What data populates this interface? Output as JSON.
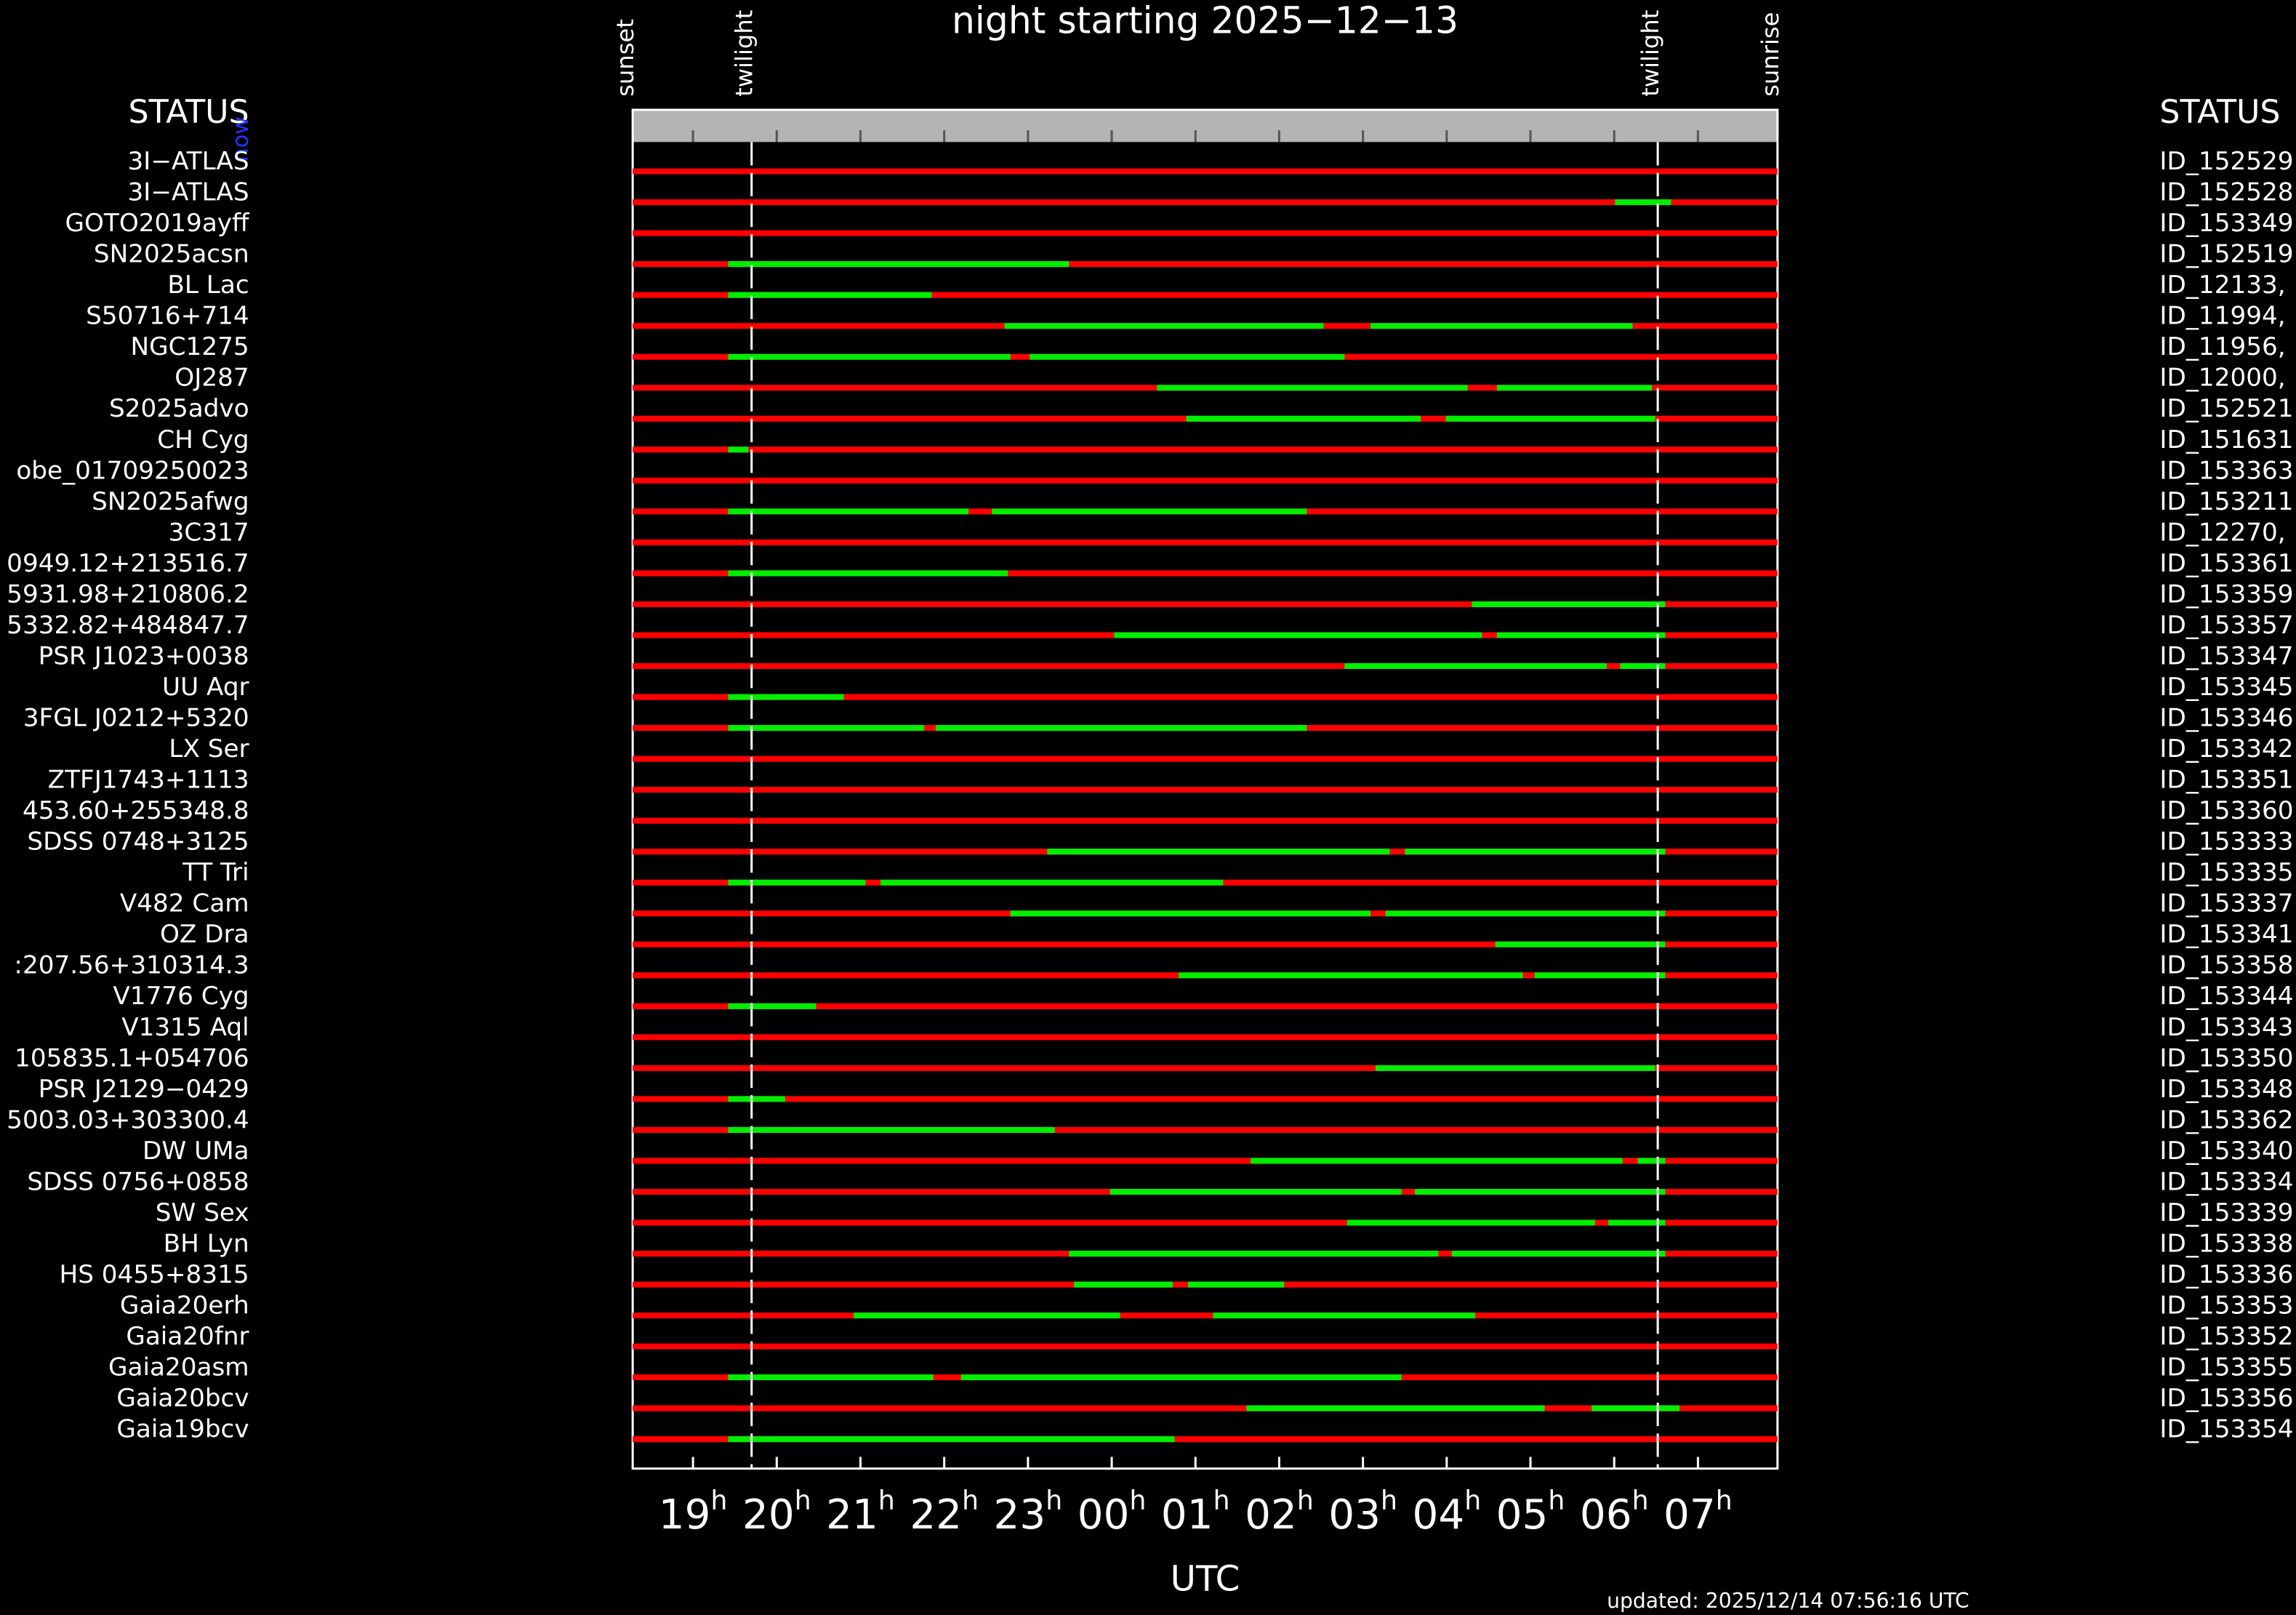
{
  "title": "night starting 2025−12−13",
  "status_left": "STATUS",
  "status_right": "STATUS",
  "now_label": "now",
  "x_label": "UTC",
  "updated": "updated: 2025/12/14 07:56:16 UTC",
  "hour_unit": "h",
  "xlim": [
    18.28,
    31.95
  ],
  "xticks": [
    {
      "value": 19,
      "label": "19"
    },
    {
      "value": 20,
      "label": "20"
    },
    {
      "value": 21,
      "label": "21"
    },
    {
      "value": 22,
      "label": "22"
    },
    {
      "value": 23,
      "label": "23"
    },
    {
      "value": 24,
      "label": "00"
    },
    {
      "value": 25,
      "label": "01"
    },
    {
      "value": 26,
      "label": "02"
    },
    {
      "value": 27,
      "label": "03"
    },
    {
      "value": 28,
      "label": "04"
    },
    {
      "value": 29,
      "label": "05"
    },
    {
      "value": 30,
      "label": "06"
    },
    {
      "value": 31,
      "label": "07"
    }
  ],
  "events": [
    {
      "label": "sunset",
      "value": 18.28
    },
    {
      "label": "twilight",
      "value": 19.7
    },
    {
      "label": "twilight",
      "value": 30.52
    },
    {
      "label": "sunrise",
      "value": 31.95
    }
  ],
  "rows": [
    {
      "name": "3I−ATLAS",
      "id": "ID_152529",
      "green": []
    },
    {
      "name": "3I−ATLAS",
      "id": "ID_152528",
      "green": [
        [
          30.01,
          30.68
        ]
      ]
    },
    {
      "name": "GOTO2019ayff",
      "id": "ID_153349",
      "green": []
    },
    {
      "name": "SN2025acsn",
      "id": "ID_152519",
      "green": [
        [
          19.42,
          23.49
        ]
      ]
    },
    {
      "name": "BL Lac",
      "id": "ID_12133,",
      "green": [
        [
          19.42,
          21.85
        ]
      ]
    },
    {
      "name": "S50716+714",
      "id": "ID_11994,",
      "green": [
        [
          22.72,
          26.53
        ],
        [
          27.09,
          30.22
        ]
      ]
    },
    {
      "name": "NGC1275",
      "id": "ID_11956,",
      "green": [
        [
          19.42,
          22.79
        ],
        [
          23.02,
          26.78
        ]
      ]
    },
    {
      "name": "OJ287",
      "id": "ID_12000,",
      "green": [
        [
          24.54,
          28.25
        ],
        [
          28.6,
          30.45
        ]
      ]
    },
    {
      "name": "S2025advo",
      "id": "ID_152521",
      "green": [
        [
          24.89,
          27.69
        ],
        [
          27.99,
          30.49
        ]
      ]
    },
    {
      "name": "CH Cyg",
      "id": "ID_151631",
      "green": [
        [
          19.42,
          19.66
        ]
      ]
    },
    {
      "name": "obe_01709250023",
      "id": "ID_153363",
      "green": []
    },
    {
      "name": "SN2025afwg",
      "id": "ID_153211",
      "green": [
        [
          19.42,
          22.29
        ],
        [
          22.57,
          26.33
        ]
      ]
    },
    {
      "name": "3C317",
      "id": "ID_12270,",
      "green": []
    },
    {
      "name": "0949.12+213516.7",
      "id": "ID_153361",
      "green": [
        [
          19.42,
          22.76
        ]
      ]
    },
    {
      "name": "5931.98+210806.2",
      "id": "ID_153359",
      "green": [
        [
          28.3,
          30.61
        ]
      ]
    },
    {
      "name": "5332.82+484847.7",
      "id": "ID_153357",
      "green": [
        [
          24.03,
          28.42
        ],
        [
          28.6,
          30.61
        ]
      ]
    },
    {
      "name": "PSR J1023+0038",
      "id": "ID_153347",
      "green": [
        [
          26.78,
          29.91
        ],
        [
          30.07,
          30.61
        ]
      ]
    },
    {
      "name": "UU Aqr",
      "id": "ID_153345",
      "green": [
        [
          19.42,
          20.8
        ]
      ]
    },
    {
      "name": "3FGL J0212+5320",
      "id": "ID_153346",
      "green": [
        [
          19.42,
          21.76
        ],
        [
          21.9,
          26.33
        ]
      ]
    },
    {
      "name": "LX Ser",
      "id": "ID_153342",
      "green": []
    },
    {
      "name": "ZTFJ1743+1113",
      "id": "ID_153351",
      "green": []
    },
    {
      "name": "453.60+255348.8",
      "id": "ID_153360",
      "green": []
    },
    {
      "name": "SDSS 0748+3125",
      "id": "ID_153333",
      "green": [
        [
          23.23,
          27.32
        ],
        [
          27.5,
          30.61
        ]
      ]
    },
    {
      "name": "TT Tri",
      "id": "ID_153335",
      "green": [
        [
          19.42,
          21.06
        ],
        [
          21.24,
          25.33
        ]
      ]
    },
    {
      "name": "V482 Cam",
      "id": "ID_153337",
      "green": [
        [
          22.79,
          27.09
        ],
        [
          27.27,
          30.61
        ]
      ]
    },
    {
      "name": "OZ Dra",
      "id": "ID_153341",
      "green": [
        [
          28.58,
          30.61
        ]
      ]
    },
    {
      "name": ":207.56+310314.3",
      "id": "ID_153358",
      "green": [
        [
          24.8,
          28.91
        ],
        [
          29.05,
          30.61
        ]
      ]
    },
    {
      "name": "V1776 Cyg",
      "id": "ID_153344",
      "green": [
        [
          19.42,
          20.47
        ]
      ]
    },
    {
      "name": "V1315 Aql",
      "id": "ID_153343",
      "green": []
    },
    {
      "name": "105835.1+054706",
      "id": "ID_153350",
      "green": [
        [
          27.15,
          30.49
        ]
      ]
    },
    {
      "name": "PSR J2129−0429",
      "id": "ID_153348",
      "green": [
        [
          19.42,
          20.1
        ]
      ]
    },
    {
      "name": "5003.03+303300.4",
      "id": "ID_153362",
      "green": [
        [
          19.42,
          23.32
        ]
      ]
    },
    {
      "name": "DW UMa",
      "id": "ID_153340",
      "green": [
        [
          25.66,
          30.1
        ],
        [
          30.28,
          30.61
        ]
      ]
    },
    {
      "name": "SDSS 0756+0858",
      "id": "ID_153334",
      "green": [
        [
          23.98,
          27.46
        ],
        [
          27.62,
          30.61
        ]
      ]
    },
    {
      "name": "SW Sex",
      "id": "ID_153339",
      "green": [
        [
          26.81,
          29.77
        ],
        [
          29.93,
          30.61
        ]
      ]
    },
    {
      "name": "BH Lyn",
      "id": "ID_153338",
      "green": [
        [
          23.49,
          27.9
        ],
        [
          28.06,
          30.61
        ]
      ]
    },
    {
      "name": "HS 0455+8315",
      "id": "ID_153336",
      "green": [
        [
          23.55,
          24.73
        ],
        [
          24.91,
          26.06
        ]
      ]
    },
    {
      "name": "Gaia20erh",
      "id": "ID_153353",
      "green": [
        [
          20.92,
          24.1
        ],
        [
          25.21,
          28.34
        ]
      ]
    },
    {
      "name": "Gaia20fnr",
      "id": "ID_153352",
      "green": []
    },
    {
      "name": "Gaia20asm",
      "id": "ID_153355",
      "green": [
        [
          19.42,
          21.87
        ],
        [
          22.2,
          27.46
        ]
      ]
    },
    {
      "name": "Gaia20bcv",
      "id": "ID_153356",
      "green": [
        [
          25.61,
          29.17
        ],
        [
          29.73,
          30.78
        ]
      ]
    },
    {
      "name": "Gaia19bcv",
      "id": "ID_153354",
      "green": [
        [
          19.42,
          24.75
        ]
      ]
    }
  ]
}
